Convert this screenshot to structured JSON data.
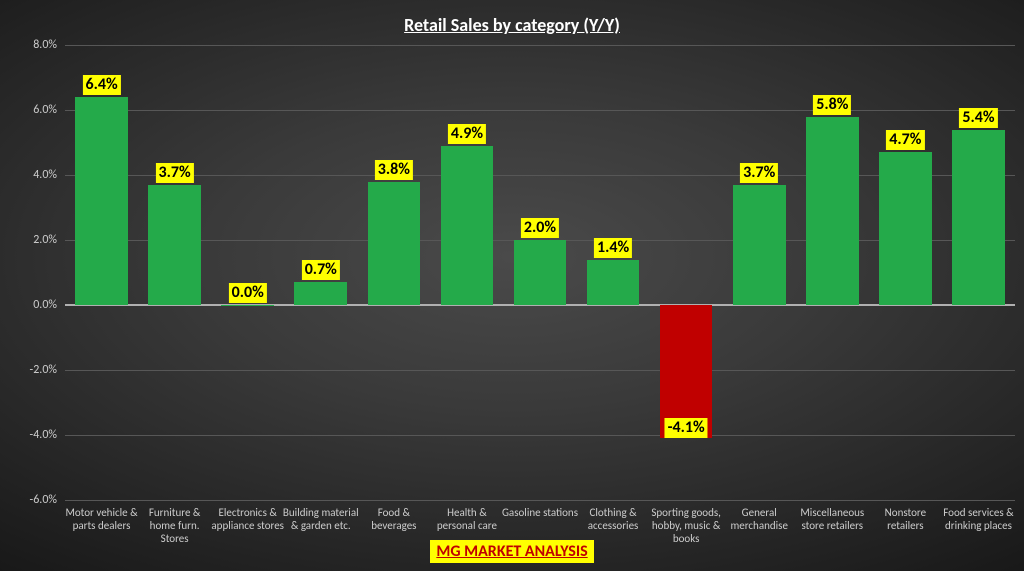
{
  "title": "Retail Sales by category (Y/Y)",
  "footer": "MG MARKET ANALYSIS",
  "chart": {
    "type": "bar",
    "ylim": [
      -6.0,
      8.0
    ],
    "ytick_step": 2.0,
    "ytick_format_suffix": "%",
    "ytick_decimals": 1,
    "background": "radial-dark",
    "grid_color": "#575757",
    "axis_color": "#b0b0b0",
    "text_color": "#cccccc",
    "bar_width_pct": 72,
    "positive_color": "#24aa4a",
    "negative_color": "#c00000",
    "label_bg": "#ffff00",
    "label_color": "#000000",
    "label_fontsize": 16,
    "categories": [
      "Motor vehicle & parts dealers",
      "Furniture & home furn. Stores",
      "Electronics & appliance stores",
      "Building material & garden etc.",
      "Food & beverages",
      "Health & personal care",
      "Gasoline stations",
      "Clothing & accessories",
      "Sporting goods, hobby, music & books",
      "General merchandise",
      "Miscellaneous store retailers",
      "Nonstore retailers",
      "Food services & drinking places"
    ],
    "values": [
      6.4,
      3.7,
      0.0,
      0.7,
      3.8,
      4.9,
      2.0,
      1.4,
      -4.1,
      3.7,
      5.8,
      4.7,
      5.4
    ]
  }
}
